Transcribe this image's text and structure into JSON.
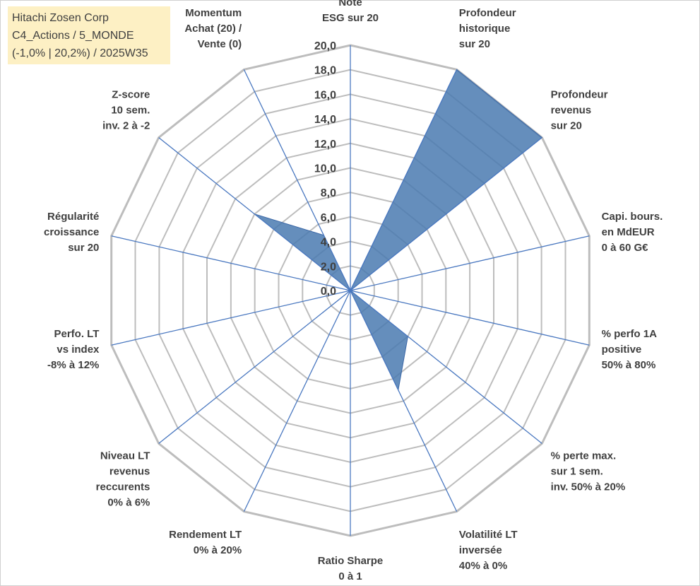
{
  "info": {
    "line1": "Hitachi Zosen Corp",
    "line2": "C4_Actions / 5_MONDE",
    "line3": "(-1,0% | 20,2%) / 2025W35"
  },
  "colors": {
    "fill": "#4a7ab0",
    "stroke": "#3a66a6",
    "spoke": "#4a78c0",
    "grid": "#bdbdbd",
    "infobox_bg": "#fdf0c4"
  },
  "chart_data": {
    "type": "radar",
    "title": "",
    "rlim": [
      0,
      20
    ],
    "rticks": [
      "0,0",
      "2,0",
      "4,0",
      "6,0",
      "8,0",
      "10,0",
      "12,0",
      "14,0",
      "16,0",
      "18,0",
      "20,0"
    ],
    "grid": true,
    "axes": [
      [
        "Note",
        "ESG sur 20"
      ],
      [
        "Profondeur",
        "historique",
        "sur 20"
      ],
      [
        "Profondeur",
        "revenus",
        "sur 20"
      ],
      [
        "Capi. bours.",
        "en MdEUR",
        "0 à 60 G€"
      ],
      [
        "% perfo 1A",
        "positive",
        "50% à 80%"
      ],
      [
        "% perte max.",
        "sur 1 sem.",
        "inv. 50% à 20%"
      ],
      [
        "Volatilité LT",
        "inversée",
        "40% à 0%"
      ],
      [
        "Ratio Sharpe",
        "0 à 1"
      ],
      [
        "Rendement LT",
        "0% à 20%"
      ],
      [
        "Niveau LT",
        "revenus",
        "reccurents",
        "0% à 6%"
      ],
      [
        "Perfo. LT",
        "vs index",
        "-8% à 12%"
      ],
      [
        "Régularité",
        "croissance",
        "sur 20"
      ],
      [
        "Z-score",
        "10 sem.",
        "inv. 2 à -2"
      ],
      [
        "Momentum",
        "Achat (20) /",
        "Vente (0)"
      ]
    ],
    "series": [
      {
        "values": [
          0,
          20,
          20,
          0,
          0,
          6,
          9,
          0,
          0,
          3,
          0,
          0,
          10,
          5
        ]
      }
    ]
  }
}
